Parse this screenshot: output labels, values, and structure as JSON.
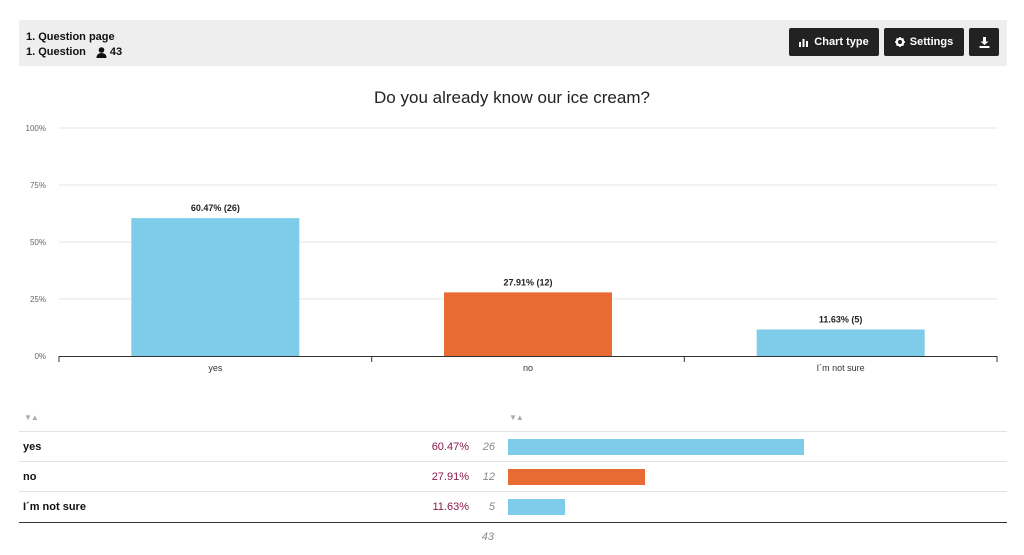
{
  "header": {
    "page_label": "1. Question page",
    "question_label": "1. Question",
    "respondent_count": "43"
  },
  "toolbar": {
    "chart_type_label": "Chart type",
    "settings_label": "Settings"
  },
  "colors": {
    "blue": "#7ecbea",
    "orange": "#e96b34"
  },
  "chart_data": {
    "type": "bar",
    "title": "Do you already know our ice cream?",
    "categories": [
      "yes",
      "no",
      "I´m not sure"
    ],
    "values": [
      60.47,
      27.91,
      11.63
    ],
    "counts": [
      26,
      12,
      5
    ],
    "bar_labels": [
      "60.47% (26)",
      "27.91% (12)",
      "11.63% (5)"
    ],
    "bar_colors": [
      "#7ecbea",
      "#e96b34",
      "#7ecbea"
    ],
    "ylim": [
      0,
      100
    ],
    "yticks": [
      "0%",
      "25%",
      "50%",
      "75%",
      "100%"
    ],
    "grid": true,
    "xlabel": "",
    "ylabel": ""
  },
  "table": {
    "rows": [
      {
        "label": "yes",
        "pct": "60.47%",
        "count": "26",
        "fraction": 0.6047,
        "color": "#7ecbea"
      },
      {
        "label": "no",
        "pct": "27.91%",
        "count": "12",
        "fraction": 0.2791,
        "color": "#e96b34"
      },
      {
        "label": "I´m not sure",
        "pct": "11.63%",
        "count": "5",
        "fraction": 0.1163,
        "color": "#7ecbea"
      }
    ],
    "total": "43",
    "sort_glyph": "▼▲"
  }
}
